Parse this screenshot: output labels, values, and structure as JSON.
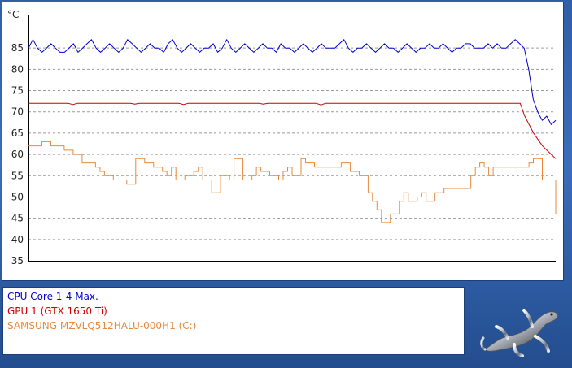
{
  "chart_data": {
    "type": "line",
    "unit_label": "°C",
    "ylim": [
      35,
      90
    ],
    "yticks": [
      35,
      40,
      45,
      50,
      55,
      60,
      65,
      70,
      75,
      80,
      85
    ],
    "grid": true,
    "legend_position": "bottom-left",
    "series": [
      {
        "name": "CPU Core 1-4 Max.",
        "color": "#0000cc",
        "values": [
          85,
          87,
          85,
          84,
          85,
          86,
          85,
          84,
          84,
          85,
          86,
          84,
          85,
          86,
          87,
          85,
          84,
          85,
          86,
          85,
          84,
          85,
          87,
          86,
          85,
          84,
          85,
          86,
          85,
          85,
          84,
          86,
          87,
          85,
          84,
          85,
          86,
          85,
          84,
          85,
          85,
          86,
          84,
          85,
          87,
          85,
          84,
          85,
          86,
          85,
          84,
          85,
          86,
          85,
          85,
          84,
          86,
          85,
          85,
          84,
          85,
          86,
          85,
          84,
          85,
          86,
          85,
          85,
          85,
          86,
          87,
          85,
          84,
          85,
          85,
          86,
          85,
          84,
          85,
          86,
          85,
          85,
          84,
          85,
          86,
          85,
          84,
          85,
          85,
          86,
          85,
          85,
          86,
          85,
          84,
          85,
          85,
          86,
          86,
          85,
          85,
          85,
          86,
          85,
          86,
          85,
          85,
          86,
          87,
          86,
          85,
          80,
          73,
          70,
          68,
          69,
          67,
          68
        ]
      },
      {
        "name": "GPU 1 (GTX 1650 Ti)",
        "color": "#cc0000",
        "values": [
          72,
          72,
          72,
          72,
          72,
          72,
          72,
          72,
          72,
          72,
          71.7,
          72,
          72,
          72,
          72,
          72,
          72,
          72,
          72,
          72,
          72,
          72,
          72,
          72,
          71.8,
          72,
          72,
          72,
          72,
          72,
          72,
          72,
          72,
          72,
          72,
          71.7,
          72,
          72,
          72,
          72,
          72,
          72,
          72,
          72,
          72,
          72,
          72,
          72,
          72,
          72,
          72,
          72,
          72,
          71.8,
          72,
          72,
          72,
          72,
          72,
          72,
          72,
          72,
          72,
          72,
          72,
          72,
          71.6,
          72,
          72,
          72,
          72,
          72,
          72,
          72,
          72,
          72,
          72,
          72,
          72,
          72,
          72,
          72,
          72,
          72,
          72,
          72,
          72,
          72,
          72,
          72,
          72,
          72,
          72,
          72,
          72,
          72,
          72,
          72,
          72,
          72,
          72,
          72,
          72,
          72,
          72,
          72,
          72,
          72,
          72,
          72,
          72,
          72,
          69,
          67,
          65,
          63.5,
          62,
          61,
          60,
          59
        ]
      },
      {
        "name": "SAMSUNG MZVLQ512HALU-000H1 (C:)",
        "color": "#e8893a",
        "values": [
          62,
          62,
          62,
          63,
          63,
          62,
          62,
          62,
          61,
          61,
          60,
          60,
          58,
          58,
          58,
          57,
          56,
          55,
          55,
          54,
          54,
          54,
          53,
          53,
          59,
          59,
          58,
          58,
          57,
          57,
          56,
          55,
          57,
          54,
          54,
          55,
          55,
          56,
          57,
          54,
          54,
          51,
          51,
          55,
          55,
          54,
          59,
          59,
          54,
          54,
          55,
          57,
          56,
          56,
          55,
          55,
          54,
          56,
          57,
          55,
          55,
          59,
          58,
          58,
          57,
          57,
          57,
          57,
          57,
          57,
          58,
          58,
          56,
          56,
          55,
          55,
          51,
          49,
          47,
          44,
          44,
          46,
          46,
          49,
          51,
          49,
          49,
          50,
          51,
          49,
          49,
          51,
          51,
          52,
          52,
          52,
          52,
          52,
          52,
          55,
          57,
          58,
          57,
          55,
          57,
          57,
          57,
          57,
          57,
          57,
          57,
          57,
          58,
          59,
          59,
          54,
          54,
          54,
          46
        ]
      }
    ]
  },
  "logo": {
    "name": "gecko-logo"
  }
}
